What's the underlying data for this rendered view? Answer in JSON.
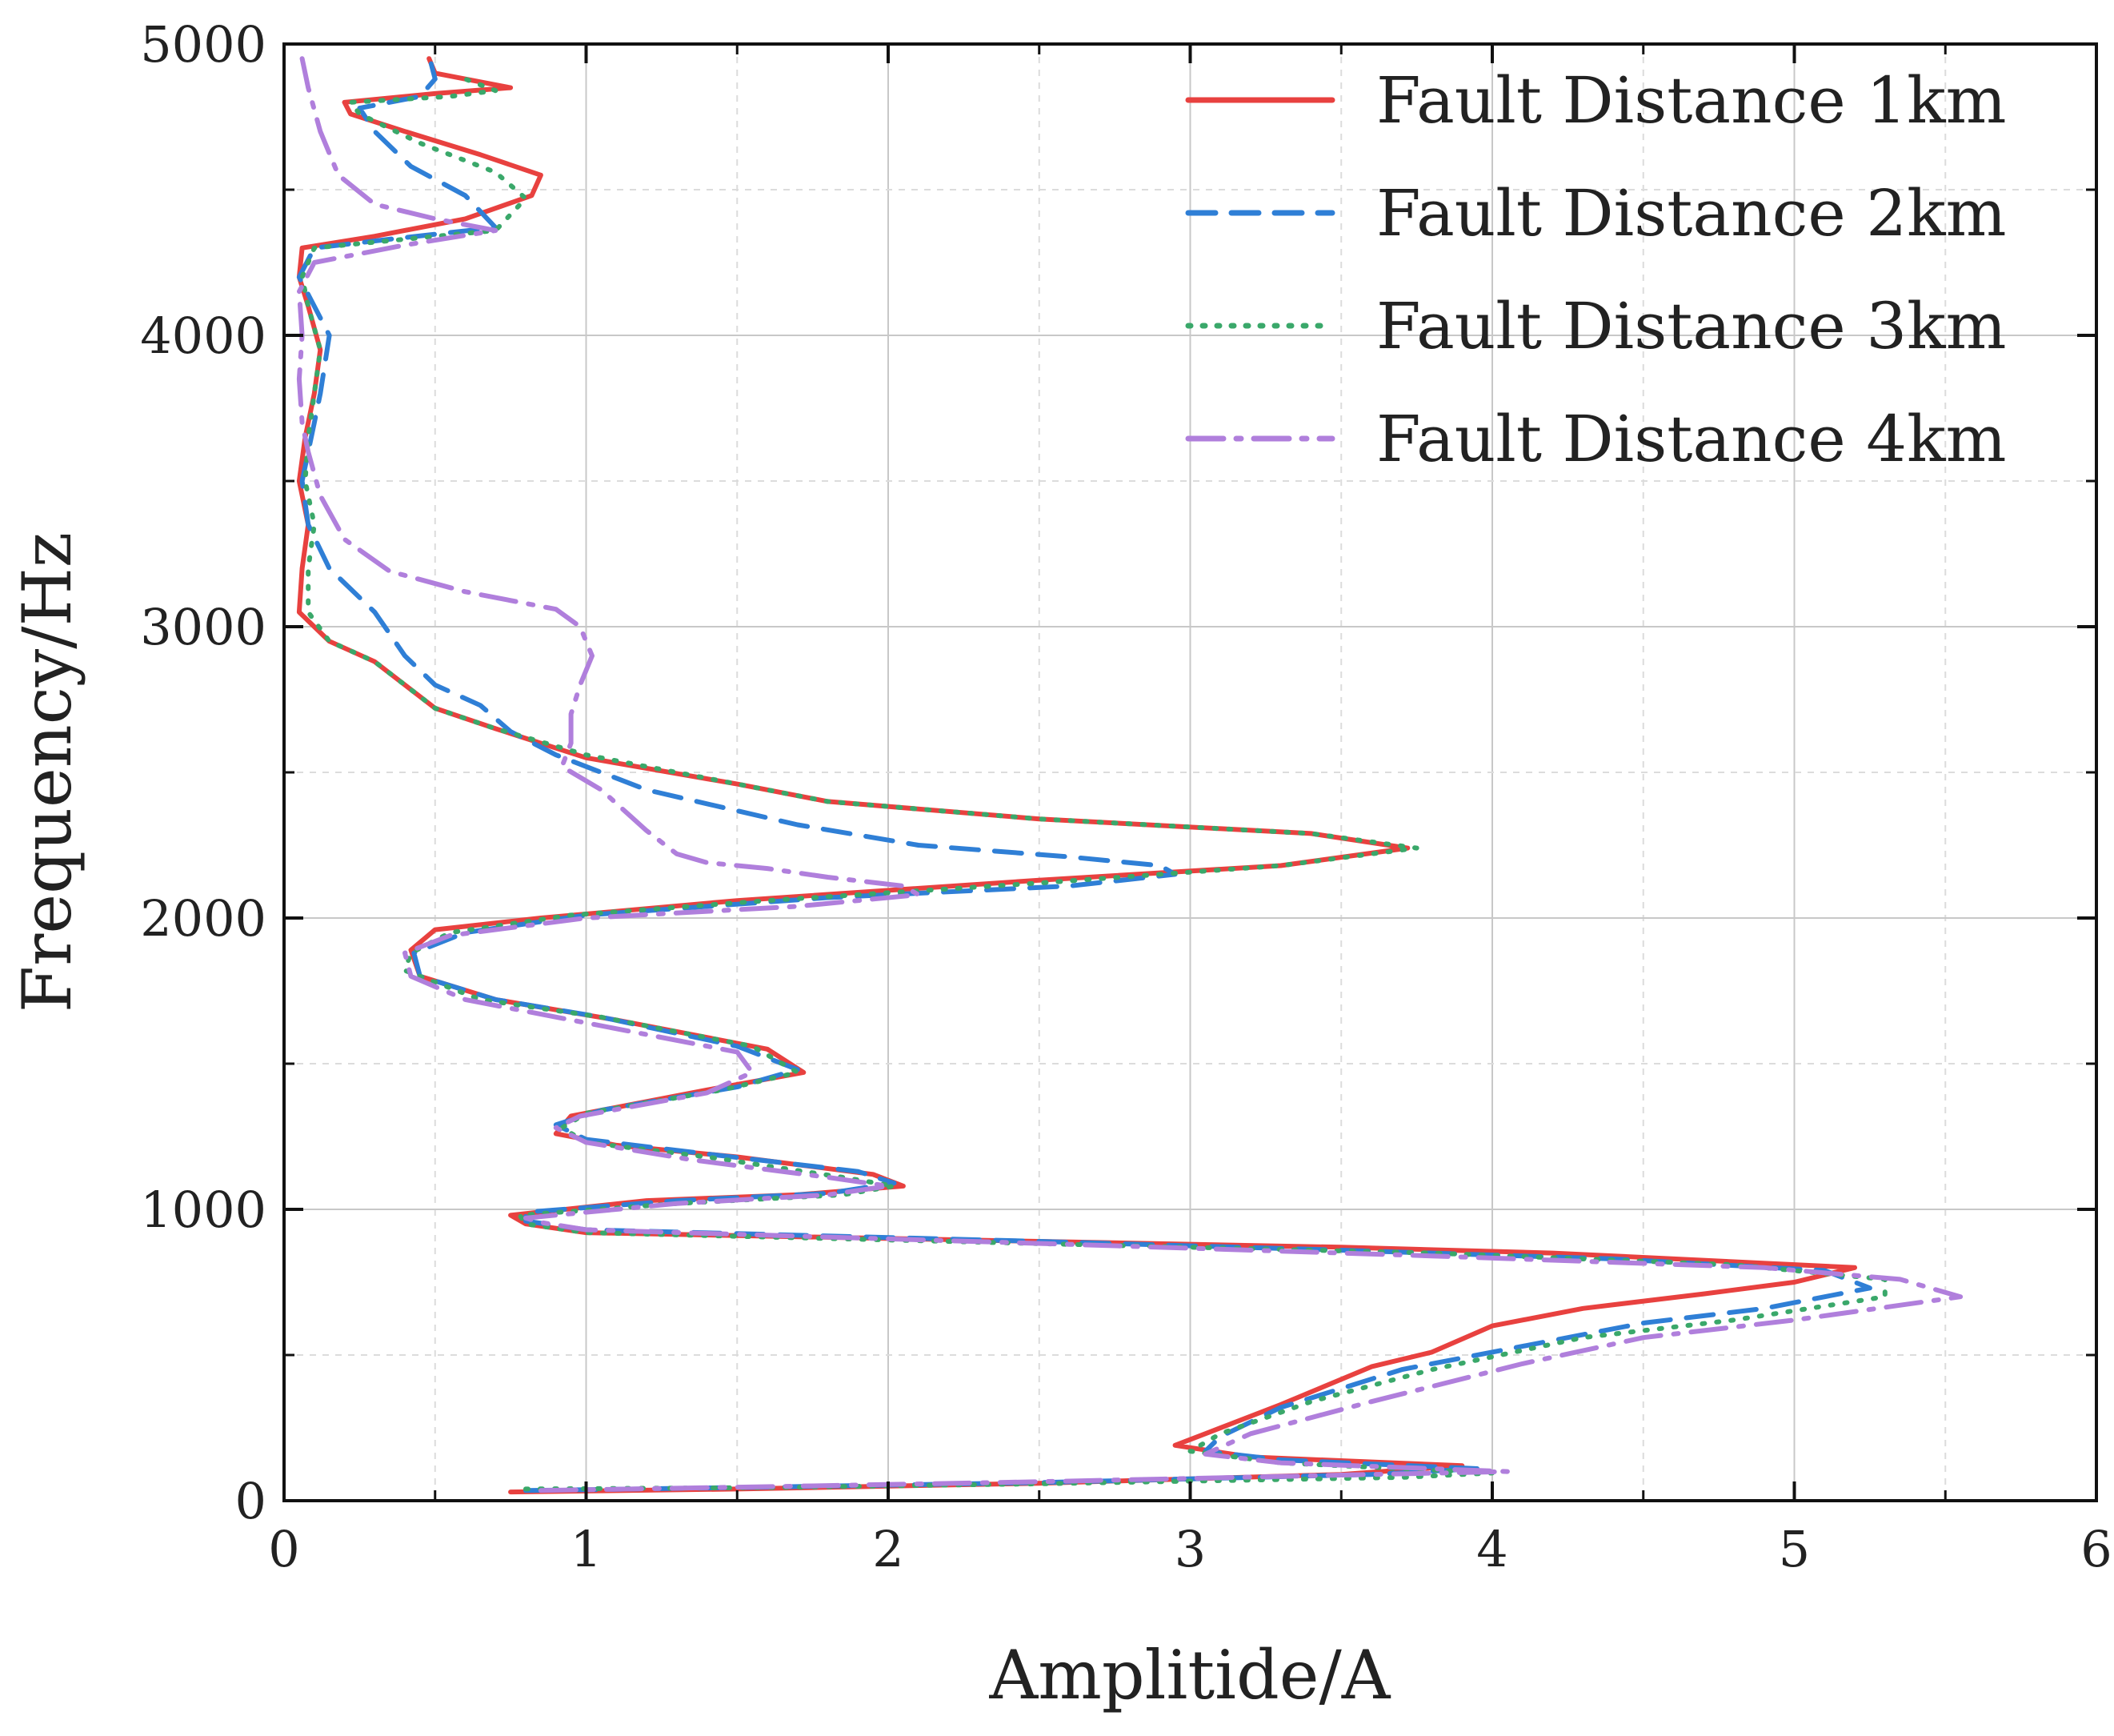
{
  "chart_data": {
    "type": "line",
    "title": "",
    "xlabel": "Amplitide/A",
    "ylabel": "Frequency/Hz",
    "xlim": [
      0,
      6
    ],
    "ylim": [
      0,
      5000
    ],
    "xticks": [
      0,
      1,
      2,
      3,
      4,
      5,
      6
    ],
    "yticks": [
      0,
      1000,
      2000,
      3000,
      4000,
      5000
    ],
    "xtick_labels": [
      "0",
      "1",
      "2",
      "3",
      "4",
      "5",
      "6"
    ],
    "ytick_labels": [
      "0",
      "1000",
      "2000",
      "3000",
      "4000",
      "5000"
    ],
    "grid": true,
    "legend_position": "top-right",
    "series": [
      {
        "name": "Fault Distance 1km",
        "color": "#e8413f",
        "style": "solid",
        "points": [
          [
            0.75,
            30
          ],
          [
            1.5,
            40
          ],
          [
            2.5,
            60
          ],
          [
            3.5,
            90
          ],
          [
            3.9,
            120
          ],
          [
            3.2,
            150
          ],
          [
            2.95,
            190
          ],
          [
            3.05,
            230
          ],
          [
            3.3,
            330
          ],
          [
            3.6,
            460
          ],
          [
            3.8,
            510
          ],
          [
            4.0,
            600
          ],
          [
            4.3,
            660
          ],
          [
            4.7,
            710
          ],
          [
            5.0,
            750
          ],
          [
            5.2,
            800
          ],
          [
            4.8,
            820
          ],
          [
            4.2,
            850
          ],
          [
            3.5,
            870
          ],
          [
            2.5,
            890
          ],
          [
            1.0,
            920
          ],
          [
            0.8,
            950
          ],
          [
            0.75,
            980
          ],
          [
            1.2,
            1030
          ],
          [
            1.7,
            1050
          ],
          [
            2.05,
            1080
          ],
          [
            1.95,
            1120
          ],
          [
            1.5,
            1180
          ],
          [
            1.1,
            1220
          ],
          [
            0.9,
            1260
          ],
          [
            0.95,
            1320
          ],
          [
            1.4,
            1410
          ],
          [
            1.72,
            1470
          ],
          [
            1.6,
            1550
          ],
          [
            1.1,
            1650
          ],
          [
            0.7,
            1720
          ],
          [
            0.45,
            1800
          ],
          [
            0.42,
            1890
          ],
          [
            0.5,
            1960
          ],
          [
            0.85,
            2000
          ],
          [
            1.5,
            2060
          ],
          [
            2.5,
            2130
          ],
          [
            3.3,
            2180
          ],
          [
            3.72,
            2240
          ],
          [
            3.4,
            2290
          ],
          [
            2.5,
            2340
          ],
          [
            1.8,
            2400
          ],
          [
            1.5,
            2460
          ],
          [
            1.0,
            2550
          ],
          [
            0.7,
            2650
          ],
          [
            0.5,
            2720
          ],
          [
            0.4,
            2800
          ],
          [
            0.3,
            2880
          ],
          [
            0.15,
            2950
          ],
          [
            0.05,
            3050
          ],
          [
            0.06,
            3200
          ],
          [
            0.08,
            3350
          ],
          [
            0.05,
            3500
          ],
          [
            0.07,
            3650
          ],
          [
            0.1,
            3800
          ],
          [
            0.12,
            3950
          ],
          [
            0.08,
            4100
          ],
          [
            0.05,
            4200
          ],
          [
            0.06,
            4300
          ],
          [
            0.3,
            4340
          ],
          [
            0.6,
            4400
          ],
          [
            0.82,
            4480
          ],
          [
            0.85,
            4550
          ],
          [
            0.65,
            4620
          ],
          [
            0.4,
            4700
          ],
          [
            0.22,
            4760
          ],
          [
            0.2,
            4800
          ],
          [
            0.5,
            4830
          ],
          [
            0.75,
            4850
          ],
          [
            0.5,
            4900
          ],
          [
            0.48,
            4950
          ]
        ]
      },
      {
        "name": "Fault Distance 2km",
        "color": "#2f7fd6",
        "style": "dashed",
        "points": [
          [
            0.8,
            35
          ],
          [
            1.5,
            45
          ],
          [
            2.5,
            62
          ],
          [
            3.6,
            90
          ],
          [
            3.95,
            110
          ],
          [
            3.3,
            140
          ],
          [
            3.05,
            170
          ],
          [
            3.1,
            220
          ],
          [
            3.3,
            320
          ],
          [
            3.7,
            450
          ],
          [
            4.1,
            530
          ],
          [
            4.5,
            610
          ],
          [
            4.9,
            660
          ],
          [
            5.25,
            730
          ],
          [
            5.1,
            790
          ],
          [
            4.4,
            830
          ],
          [
            3.5,
            860
          ],
          [
            2.5,
            890
          ],
          [
            1.0,
            930
          ],
          [
            0.8,
            960
          ],
          [
            0.8,
            990
          ],
          [
            1.3,
            1030
          ],
          [
            1.8,
            1055
          ],
          [
            2.02,
            1090
          ],
          [
            1.9,
            1130
          ],
          [
            1.4,
            1190
          ],
          [
            1.0,
            1240
          ],
          [
            0.9,
            1290
          ],
          [
            1.05,
            1340
          ],
          [
            1.5,
            1420
          ],
          [
            1.7,
            1480
          ],
          [
            1.5,
            1560
          ],
          [
            1.05,
            1660
          ],
          [
            0.7,
            1720
          ],
          [
            0.45,
            1800
          ],
          [
            0.43,
            1880
          ],
          [
            0.6,
            1950
          ],
          [
            1.0,
            2010
          ],
          [
            1.8,
            2070
          ],
          [
            2.6,
            2110
          ],
          [
            2.95,
            2150
          ],
          [
            2.9,
            2180
          ],
          [
            2.6,
            2210
          ],
          [
            2.1,
            2250
          ],
          [
            1.7,
            2320
          ],
          [
            1.2,
            2440
          ],
          [
            0.9,
            2560
          ],
          [
            0.75,
            2640
          ],
          [
            0.65,
            2730
          ],
          [
            0.5,
            2800
          ],
          [
            0.4,
            2900
          ],
          [
            0.3,
            3050
          ],
          [
            0.15,
            3200
          ],
          [
            0.08,
            3350
          ],
          [
            0.06,
            3500
          ],
          [
            0.1,
            3700
          ],
          [
            0.12,
            3800
          ],
          [
            0.15,
            4000
          ],
          [
            0.1,
            4100
          ],
          [
            0.05,
            4200
          ],
          [
            0.1,
            4300
          ],
          [
            0.35,
            4330
          ],
          [
            0.7,
            4370
          ],
          [
            0.6,
            4480
          ],
          [
            0.42,
            4580
          ],
          [
            0.3,
            4700
          ],
          [
            0.25,
            4780
          ],
          [
            0.45,
            4820
          ],
          [
            0.5,
            4880
          ],
          [
            0.48,
            4960
          ]
        ]
      },
      {
        "name": "Fault Distance 3km",
        "color": "#3aa86a",
        "style": "dotted",
        "points": [
          [
            0.8,
            40
          ],
          [
            1.6,
            45
          ],
          [
            2.5,
            58
          ],
          [
            3.7,
            80
          ],
          [
            4.0,
            95
          ],
          [
            3.3,
            130
          ],
          [
            3.0,
            170
          ],
          [
            3.1,
            230
          ],
          [
            3.4,
            340
          ],
          [
            3.8,
            450
          ],
          [
            4.3,
            560
          ],
          [
            4.8,
            620
          ],
          [
            5.3,
            700
          ],
          [
            5.3,
            760
          ],
          [
            4.8,
            810
          ],
          [
            3.8,
            850
          ],
          [
            2.6,
            880
          ],
          [
            1.0,
            920
          ],
          [
            0.8,
            950
          ],
          [
            0.78,
            980
          ],
          [
            1.3,
            1020
          ],
          [
            1.85,
            1050
          ],
          [
            2.02,
            1080
          ],
          [
            1.85,
            1110
          ],
          [
            1.4,
            1180
          ],
          [
            1.0,
            1230
          ],
          [
            0.92,
            1280
          ],
          [
            1.0,
            1330
          ],
          [
            1.45,
            1410
          ],
          [
            1.7,
            1470
          ],
          [
            1.55,
            1560
          ],
          [
            1.05,
            1660
          ],
          [
            0.65,
            1720
          ],
          [
            0.4,
            1820
          ],
          [
            0.42,
            1880
          ],
          [
            0.55,
            1950
          ],
          [
            0.95,
            2010
          ],
          [
            1.6,
            2060
          ],
          [
            2.5,
            2120
          ],
          [
            3.3,
            2180
          ],
          [
            3.75,
            2240
          ],
          [
            3.4,
            2290
          ],
          [
            2.5,
            2340
          ],
          [
            1.8,
            2400
          ],
          [
            1.5,
            2460
          ],
          [
            1.0,
            2560
          ],
          [
            0.7,
            2650
          ],
          [
            0.5,
            2720
          ],
          [
            0.4,
            2800
          ],
          [
            0.3,
            2880
          ],
          [
            0.15,
            2950
          ],
          [
            0.08,
            3050
          ],
          [
            0.08,
            3200
          ],
          [
            0.1,
            3350
          ],
          [
            0.07,
            3500
          ],
          [
            0.08,
            3650
          ],
          [
            0.1,
            3800
          ],
          [
            0.12,
            3950
          ],
          [
            0.08,
            4100
          ],
          [
            0.06,
            4200
          ],
          [
            0.1,
            4300
          ],
          [
            0.4,
            4330
          ],
          [
            0.7,
            4360
          ],
          [
            0.8,
            4470
          ],
          [
            0.7,
            4560
          ],
          [
            0.45,
            4660
          ],
          [
            0.25,
            4760
          ],
          [
            0.22,
            4800
          ],
          [
            0.55,
            4820
          ],
          [
            0.7,
            4840
          ],
          [
            0.6,
            4880
          ]
        ]
      },
      {
        "name": "Fault Distance 4km",
        "color": "#b07fdc",
        "style": "dashdot",
        "points": [
          [
            0.85,
            35
          ],
          [
            1.6,
            48
          ],
          [
            2.5,
            65
          ],
          [
            3.6,
            90
          ],
          [
            4.05,
            100
          ],
          [
            3.3,
            130
          ],
          [
            3.05,
            160
          ],
          [
            3.2,
            230
          ],
          [
            3.6,
            340
          ],
          [
            4.1,
            470
          ],
          [
            4.5,
            560
          ],
          [
            5.0,
            620
          ],
          [
            5.55,
            700
          ],
          [
            5.35,
            760
          ],
          [
            4.9,
            800
          ],
          [
            3.8,
            840
          ],
          [
            2.6,
            880
          ],
          [
            1.0,
            930
          ],
          [
            0.85,
            955
          ],
          [
            0.8,
            970
          ],
          [
            1.3,
            1020
          ],
          [
            1.8,
            1050
          ],
          [
            2.0,
            1080
          ],
          [
            1.8,
            1110
          ],
          [
            1.35,
            1170
          ],
          [
            1.0,
            1230
          ],
          [
            0.9,
            1280
          ],
          [
            0.98,
            1320
          ],
          [
            1.4,
            1400
          ],
          [
            1.55,
            1470
          ],
          [
            1.5,
            1540
          ],
          [
            1.0,
            1640
          ],
          [
            0.6,
            1720
          ],
          [
            0.42,
            1800
          ],
          [
            0.4,
            1880
          ],
          [
            0.55,
            1940
          ],
          [
            1.0,
            2000
          ],
          [
            1.7,
            2040
          ],
          [
            2.1,
            2080
          ],
          [
            2.05,
            2110
          ],
          [
            1.8,
            2140
          ],
          [
            1.6,
            2170
          ],
          [
            1.4,
            2190
          ],
          [
            1.3,
            2220
          ],
          [
            1.2,
            2300
          ],
          [
            1.05,
            2440
          ],
          [
            0.92,
            2520
          ],
          [
            0.95,
            2600
          ],
          [
            0.95,
            2700
          ],
          [
            0.98,
            2800
          ],
          [
            1.02,
            2900
          ],
          [
            0.98,
            3000
          ],
          [
            0.9,
            3060
          ],
          [
            0.6,
            3120
          ],
          [
            0.35,
            3190
          ],
          [
            0.2,
            3300
          ],
          [
            0.12,
            3450
          ],
          [
            0.08,
            3600
          ],
          [
            0.06,
            3700
          ],
          [
            0.05,
            3850
          ],
          [
            0.06,
            4000
          ],
          [
            0.05,
            4150
          ],
          [
            0.1,
            4250
          ],
          [
            0.4,
            4310
          ],
          [
            0.7,
            4360
          ],
          [
            0.5,
            4400
          ],
          [
            0.3,
            4450
          ],
          [
            0.18,
            4550
          ],
          [
            0.12,
            4700
          ],
          [
            0.08,
            4850
          ],
          [
            0.06,
            4950
          ]
        ]
      }
    ]
  }
}
